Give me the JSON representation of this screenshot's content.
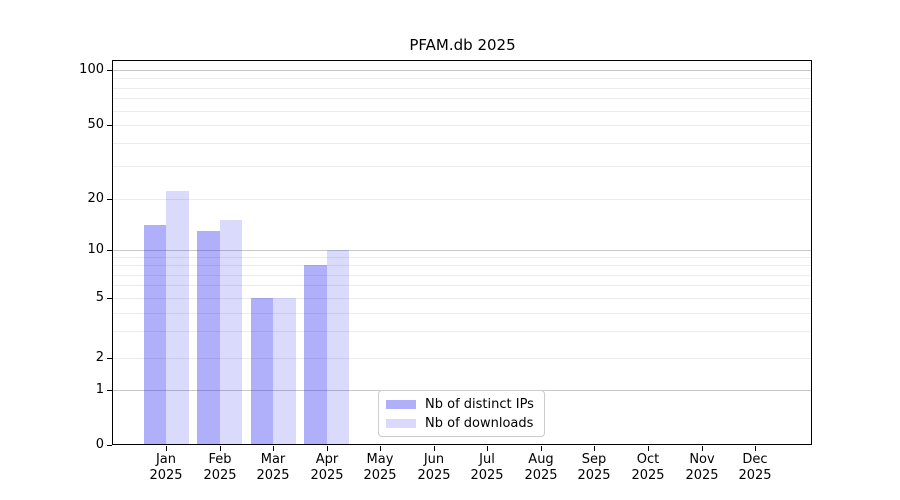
{
  "title": "PFAM.db 2025",
  "chart_data": {
    "type": "bar",
    "title": "PFAM.db 2025",
    "categories": [
      "Jan",
      "Feb",
      "Mar",
      "Apr",
      "May",
      "Jun",
      "Jul",
      "Aug",
      "Sep",
      "Oct",
      "Nov",
      "Dec"
    ],
    "year_label": "2025",
    "series": [
      {
        "name": "Nb of distinct IPs",
        "color": "rgba(25,25,240,0.35)",
        "values": [
          14,
          13,
          5,
          8,
          0,
          0,
          0,
          0,
          0,
          0,
          0,
          0
        ]
      },
      {
        "name": "Nb of downloads",
        "color": "rgba(25,25,240,0.16)",
        "values": [
          22,
          15,
          5,
          10,
          0,
          0,
          0,
          0,
          0,
          0,
          0,
          0
        ]
      }
    ],
    "y_ticks": [
      0,
      1,
      2,
      5,
      10,
      20,
      50,
      100
    ],
    "ylim": [
      0,
      110
    ],
    "y_scale": "symlog",
    "grid": "horizontal-minor-and-major",
    "legend_position": "lower-center"
  }
}
